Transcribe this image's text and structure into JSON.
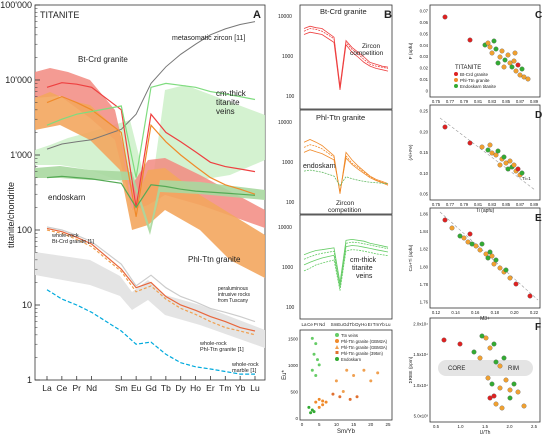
{
  "chart_data": [
    {
      "panel": "A",
      "type": "line",
      "title": "TITANITE",
      "ylabel": "titanite/chondrite",
      "yscale": "log",
      "ylim": [
        1,
        100000
      ],
      "yticks": [
        "100'000",
        "10'000",
        "1'000",
        "100",
        "10",
        "1"
      ],
      "categories": [
        "La",
        "Ce",
        "Pr",
        "Nd",
        "Sm",
        "Eu",
        "Gd",
        "Tb",
        "Dy",
        "Ho",
        "Er",
        "Tm",
        "Yb",
        "Lu"
      ],
      "series": [
        {
          "name": "metasomatic zircon [11]",
          "color": "#777777",
          "values": [
            1200,
            1400,
            1500,
            1600,
            2200,
            3500,
            9000,
            15000,
            22000,
            30000,
            40000,
            48000,
            55000,
            60000
          ]
        },
        {
          "name": "Bt-Crd granite",
          "color": "#ee4040",
          "values": [
            8000,
            9200,
            8800,
            8000,
            4000,
            200,
            3500,
            2000,
            1500,
            1100,
            800,
            700,
            650,
            600
          ]
        },
        {
          "name": "Phl-Ttn granite",
          "color": "#f08a2a",
          "values": [
            5000,
            6000,
            5000,
            4000,
            2000,
            150,
            2500,
            1500,
            1000,
            700,
            500,
            400,
            350,
            300
          ]
        },
        {
          "name": "cm-thick titanite veins",
          "color": "#7fdc7f",
          "values": [
            2500,
            3000,
            3500,
            3800,
            4500,
            500,
            8000,
            9000,
            8500,
            8000,
            7000,
            6500,
            6000,
            5500
          ]
        },
        {
          "name": "endoskarn",
          "color": "#55aa55",
          "values": [
            500,
            520,
            500,
            480,
            420,
            200,
            400,
            380,
            350,
            330,
            320,
            310,
            300,
            290
          ]
        },
        {
          "name": "whole-rock Bt-Crd granite [1]",
          "color": "#e8663c",
          "values": [
            105,
            95,
            80,
            65,
            30,
            17,
            20,
            13,
            10,
            8.5,
            7,
            6,
            5,
            4.5
          ]
        },
        {
          "name": "whole-rock Phl-Ttn granite [1]",
          "color": "#f0a050",
          "values": [
            100,
            90,
            75,
            60,
            28,
            15,
            18,
            12,
            9,
            7.5,
            6,
            5,
            4.5,
            4
          ]
        },
        {
          "name": "peraluminous intrusive rocks from Tuscany",
          "color": "#cccccc",
          "values": [
            110,
            100,
            85,
            70,
            35,
            18,
            25,
            17,
            13,
            11,
            9,
            8,
            7,
            6
          ]
        },
        {
          "name": "whole-rock marble [1]",
          "color": "#00aadd",
          "values": [
            16,
            12,
            10,
            8,
            4.5,
            3,
            3.2,
            2.2,
            1.7,
            1.5,
            1.4,
            1.3,
            1.2,
            1.2
          ]
        }
      ],
      "annotations": [
        "metasomatic zircon [11]",
        "Bt-Crd granite",
        "cm-thick titanite veins",
        "endoskarn",
        "Phl-Ttn granite",
        "whole-rock Bt-Crd granite [1]",
        "peraluminous intrusive rocks from Tuscany",
        "whole-rock Phl-Ttn granite [1]",
        "whole-rock marble [1]"
      ]
    },
    {
      "panel": "B",
      "type": "line",
      "yscale": "log",
      "categories": [
        "La",
        "Ce",
        "Pr",
        "Nd",
        "Sm",
        "Eu",
        "Gd",
        "Tb",
        "Dy",
        "Ho",
        "Er",
        "Tm",
        "Yb",
        "Lu"
      ],
      "subpanels": [
        {
          "title": "Bt-Crd granite",
          "yticks": [
            "10000",
            "1000",
            "100"
          ],
          "annotation": "Zircon competition",
          "color": "#ee4040"
        },
        {
          "title": "Phl-Ttn granite",
          "yticks": [
            "10000",
            "1000",
            "100"
          ],
          "annotations": [
            "endoskarn",
            "Zircon competition"
          ],
          "color": "#f08a2a"
        },
        {
          "title": "cm-thick titanite veins",
          "yticks": [
            "10000",
            "1000",
            "100"
          ],
          "color": "#66cc66"
        }
      ],
      "scatter": {
        "xlabel": "Sm/Yb",
        "ylabel": "Eu*",
        "xticks": [
          "0",
          "5",
          "10",
          "15",
          "20",
          "25"
        ],
        "yticks": [
          "0",
          "500",
          "1000",
          "1500"
        ],
        "legend": [
          "Ttn veins",
          "Phl-Ttn granite (GBM2A)",
          "Phl-Ttn granite (GBM3A)",
          "Phl-Ttn granite (395m)",
          "Endoskarn"
        ],
        "legend_colors": [
          "#66cc66",
          "#f08a2a",
          "#f0a050",
          "#e07030",
          "#33aa33"
        ]
      }
    },
    {
      "panel": "C",
      "type": "scatter",
      "title": "TITANITE",
      "xlabel": "",
      "ylabel": "F (apfu)",
      "yticks": [
        "0.07",
        "0.06",
        "0.05",
        "0.04",
        "0.03",
        "0.02",
        "0.01",
        "0"
      ],
      "xticks": [
        "0.75",
        "0.77",
        "0.79",
        "0.81",
        "0.83",
        "0.85",
        "0.87",
        "0.89"
      ],
      "legend": [
        "Bt-Crd granite",
        "Phl-Ttn granite",
        "Endoskarn titanite"
      ],
      "legend_colors": [
        "#dd2222",
        "#f08a2a",
        "#33aa33"
      ]
    },
    {
      "panel": "D",
      "type": "scatter",
      "xlabel": "Ti (apfu)",
      "ylabel": "(Al+Fe)",
      "yticks": [
        "0.25",
        "0.20",
        "0.15",
        "0.10",
        "0.05"
      ],
      "xticks": [
        "0.75",
        "0.77",
        "0.79",
        "0.81",
        "0.83",
        "0.85",
        "0.87",
        "0.89"
      ],
      "annotation": "Ti=1"
    },
    {
      "panel": "E",
      "type": "scatter",
      "xlabel": "M3+",
      "ylabel": "Ca+Ti (apfu)",
      "yticks": [
        "1.86",
        "1.84",
        "1.82",
        "1.80",
        "1.78",
        "1.76"
      ],
      "xticks": [
        "0.12",
        "0.14",
        "0.16",
        "0.18",
        "0.20",
        "0.22"
      ]
    },
    {
      "panel": "F",
      "type": "scatter",
      "xlabel": "U/Th",
      "ylabel": "ΣREE (ppm)",
      "yticks": [
        "2.0x10⁴",
        "1.5x10⁴",
        "1.0x10⁴",
        "5.0x10³"
      ],
      "xticks": [
        "0.5",
        "1.0",
        "1.5",
        "2.0",
        "2.5"
      ],
      "annotations": [
        "CORE",
        "RIM"
      ]
    }
  ]
}
